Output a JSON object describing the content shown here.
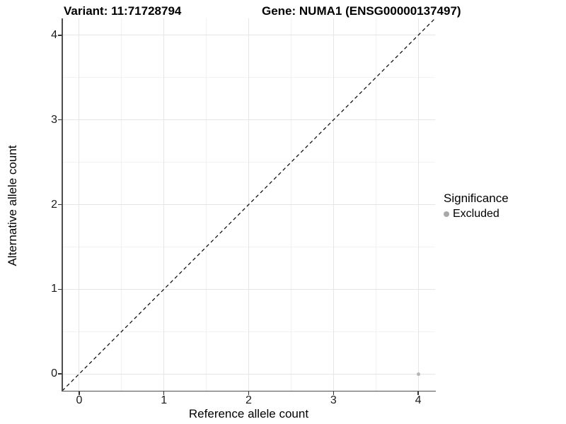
{
  "chart_data": {
    "type": "scatter",
    "titles": {
      "left": "Variant: 11:71728794",
      "right": "Gene: NUMA1 (ENSG00000137497)"
    },
    "xlabel": "Reference allele count",
    "ylabel": "Alternative allele count",
    "xlim": [
      -0.2,
      4.2
    ],
    "ylim": [
      -0.2,
      4.2
    ],
    "x_ticks": [
      0,
      1,
      2,
      3,
      4
    ],
    "y_ticks": [
      0,
      1,
      2,
      3,
      4
    ],
    "x_minor_ticks": [
      0.5,
      1.5,
      2.5,
      3.5
    ],
    "y_minor_ticks": [
      0.5,
      1.5,
      2.5,
      3.5
    ],
    "grid": true,
    "reference_line": {
      "slope": 1,
      "intercept": 0,
      "style": "dashed",
      "color": "#000000"
    },
    "series": [
      {
        "name": "Excluded",
        "color": "#b5b5b5",
        "points": [
          {
            "x": 4,
            "y": 0
          }
        ]
      }
    ],
    "legend": {
      "title": "Significance",
      "position": "right",
      "entries": [
        {
          "label": "Excluded",
          "color": "#a8a8a8"
        }
      ]
    },
    "colors": {
      "grid_major": "#e6e6e6",
      "grid_minor": "#f2f2f2",
      "axis": "#4d4d4d",
      "tick": "#333333"
    }
  }
}
